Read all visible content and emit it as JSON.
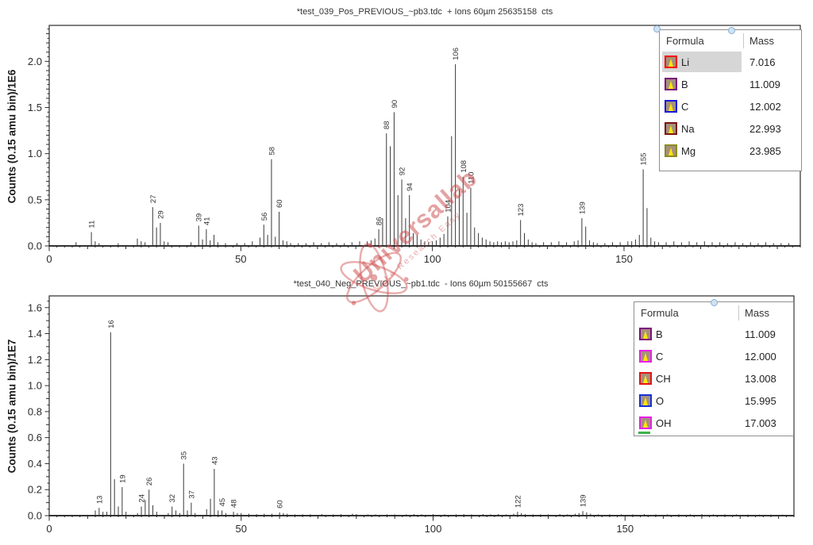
{
  "watermark": {
    "brand": "Universallab",
    "tagline": "Make Research Easy",
    "color": "#ce4c4c"
  },
  "chart_data": [
    {
      "type": "bar",
      "title": "*test_039_Pos_PREVIOUS_~pb3.tdc  + Ions 60µm 25635158  cts",
      "ylabel": "Counts (0.15 amu bin)/1E6",
      "xlabel": "",
      "xlim": [
        0,
        196
      ],
      "ylim": [
        0,
        2.39
      ],
      "xticks": [
        0,
        50,
        100,
        150
      ],
      "yticks": [
        0.0,
        0.5,
        1.0,
        1.5,
        2.0
      ],
      "x_mid_step": 10,
      "x_minor_step": 2,
      "y_mid_step": 0.1,
      "y_minor_step": 0.05,
      "grid": false,
      "peaks": [
        [
          7,
          0.04
        ],
        [
          11,
          0.15,
          "11"
        ],
        [
          12,
          0.05
        ],
        [
          13,
          0.03
        ],
        [
          18,
          0.03
        ],
        [
          23,
          0.08
        ],
        [
          24,
          0.05
        ],
        [
          25,
          0.04
        ],
        [
          27,
          0.42,
          "27"
        ],
        [
          28,
          0.2
        ],
        [
          29,
          0.25,
          "29"
        ],
        [
          30,
          0.05
        ],
        [
          31,
          0.04
        ],
        [
          37,
          0.04
        ],
        [
          39,
          0.22,
          "39"
        ],
        [
          40,
          0.07
        ],
        [
          41,
          0.18,
          "41"
        ],
        [
          42,
          0.06
        ],
        [
          43,
          0.12
        ],
        [
          44,
          0.04
        ],
        [
          46,
          0.03
        ],
        [
          49,
          0.03
        ],
        [
          51,
          0.03
        ],
        [
          53,
          0.05
        ],
        [
          55,
          0.09
        ],
        [
          56,
          0.23,
          "56"
        ],
        [
          57,
          0.12
        ],
        [
          58,
          0.94,
          "58"
        ],
        [
          59,
          0.1
        ],
        [
          60,
          0.37,
          "60"
        ],
        [
          61,
          0.06
        ],
        [
          62,
          0.05
        ],
        [
          63,
          0.03
        ],
        [
          65,
          0.03
        ],
        [
          67,
          0.03
        ],
        [
          69,
          0.04
        ],
        [
          71,
          0.03
        ],
        [
          73,
          0.04
        ],
        [
          75,
          0.03
        ],
        [
          77,
          0.03
        ],
        [
          79,
          0.04
        ],
        [
          81,
          0.05
        ],
        [
          83,
          0.05
        ],
        [
          84,
          0.06
        ],
        [
          85,
          0.08
        ],
        [
          86,
          0.18,
          "86"
        ],
        [
          87,
          0.3
        ],
        [
          88,
          1.22,
          "88"
        ],
        [
          89,
          1.08
        ],
        [
          90,
          1.45,
          "90"
        ],
        [
          91,
          0.55
        ],
        [
          92,
          0.72,
          "92"
        ],
        [
          93,
          0.3
        ],
        [
          94,
          0.55,
          "94"
        ],
        [
          95,
          0.14
        ],
        [
          96,
          0.12
        ],
        [
          97,
          0.07
        ],
        [
          98,
          0.05
        ],
        [
          99,
          0.04
        ],
        [
          100,
          0.05
        ],
        [
          101,
          0.06
        ],
        [
          102,
          0.09
        ],
        [
          103,
          0.13
        ],
        [
          104,
          0.32,
          "104"
        ],
        [
          105,
          1.19
        ],
        [
          106,
          1.97,
          "106"
        ],
        [
          107,
          0.62
        ],
        [
          108,
          0.75,
          "108"
        ],
        [
          109,
          0.36
        ],
        [
          110,
          0.63,
          "110"
        ],
        [
          111,
          0.2
        ],
        [
          112,
          0.14
        ],
        [
          113,
          0.09
        ],
        [
          114,
          0.07
        ],
        [
          115,
          0.05
        ],
        [
          116,
          0.04
        ],
        [
          117,
          0.05
        ],
        [
          118,
          0.04
        ],
        [
          119,
          0.05
        ],
        [
          120,
          0.04
        ],
        [
          121,
          0.05
        ],
        [
          122,
          0.06
        ],
        [
          123,
          0.28,
          "123"
        ],
        [
          124,
          0.14
        ],
        [
          125,
          0.07
        ],
        [
          126,
          0.04
        ],
        [
          127,
          0.03
        ],
        [
          129,
          0.04
        ],
        [
          131,
          0.04
        ],
        [
          133,
          0.05
        ],
        [
          135,
          0.04
        ],
        [
          137,
          0.05
        ],
        [
          138,
          0.06
        ],
        [
          139,
          0.3,
          "139"
        ],
        [
          140,
          0.21
        ],
        [
          141,
          0.06
        ],
        [
          142,
          0.04
        ],
        [
          143,
          0.03
        ],
        [
          145,
          0.03
        ],
        [
          147,
          0.04
        ],
        [
          149,
          0.04
        ],
        [
          151,
          0.05
        ],
        [
          152,
          0.05
        ],
        [
          153,
          0.07
        ],
        [
          154,
          0.12
        ],
        [
          155,
          0.83,
          "155"
        ],
        [
          156,
          0.41
        ],
        [
          157,
          0.09
        ],
        [
          158,
          0.05
        ],
        [
          159,
          0.04
        ],
        [
          161,
          0.04
        ],
        [
          163,
          0.05
        ],
        [
          165,
          0.04
        ],
        [
          167,
          0.05
        ],
        [
          169,
          0.04
        ],
        [
          171,
          0.05
        ],
        [
          173,
          0.04
        ],
        [
          175,
          0.04
        ],
        [
          177,
          0.03
        ],
        [
          179,
          0.04
        ],
        [
          181,
          0.03
        ],
        [
          183,
          0.04
        ],
        [
          185,
          0.03
        ],
        [
          187,
          0.04
        ],
        [
          189,
          0.03
        ],
        [
          191,
          0.03
        ],
        [
          193,
          0.03
        ]
      ],
      "legend": {
        "headers": [
          "Formula",
          "Mass"
        ],
        "rows": [
          {
            "formula": "Li",
            "mass": "7.016",
            "color": "#ff0000",
            "selected": true
          },
          {
            "formula": "B",
            "mass": "11.009",
            "color": "#7b0f7b",
            "selected": false
          },
          {
            "formula": "C",
            "mass": "12.002",
            "color": "#1616dd",
            "selected": false
          },
          {
            "formula": "Na",
            "mass": "22.993",
            "color": "#7a1212",
            "selected": false
          },
          {
            "formula": "Mg",
            "mass": "23.985",
            "color": "#8b8b1f",
            "selected": false
          }
        ]
      }
    },
    {
      "type": "bar",
      "title": "*test_040_Neg_PREVIOUS_~pb1.tdc  - Ions 60µm 50155667  cts",
      "ylabel": "Counts (0.15 amu bin)/1E7",
      "xlabel": "",
      "xlim": [
        0,
        194
      ],
      "ylim": [
        0,
        1.69
      ],
      "xticks": [
        0,
        50,
        100,
        150
      ],
      "yticks": [
        0.0,
        0.2,
        0.4,
        0.6,
        0.8,
        1.0,
        1.2,
        1.4,
        1.6
      ],
      "x_mid_step": 10,
      "x_minor_step": 2,
      "y_mid_step": 0.1,
      "y_minor_step": 0.05,
      "grid": false,
      "peaks": [
        [
          12,
          0.04
        ],
        [
          13,
          0.06,
          "13"
        ],
        [
          14,
          0.03
        ],
        [
          15,
          0.03
        ],
        [
          16,
          1.41,
          "16"
        ],
        [
          17,
          0.28
        ],
        [
          18,
          0.07
        ],
        [
          19,
          0.22,
          "19"
        ],
        [
          20,
          0.03
        ],
        [
          23,
          0.02
        ],
        [
          24,
          0.07,
          "24"
        ],
        [
          25,
          0.12
        ],
        [
          26,
          0.2,
          "26"
        ],
        [
          27,
          0.08
        ],
        [
          28,
          0.03
        ],
        [
          31,
          0.02
        ],
        [
          32,
          0.07,
          "32"
        ],
        [
          33,
          0.04
        ],
        [
          34,
          0.02
        ],
        [
          35,
          0.4,
          "35"
        ],
        [
          36,
          0.04
        ],
        [
          37,
          0.1,
          "37"
        ],
        [
          38,
          0.02
        ],
        [
          41,
          0.05
        ],
        [
          42,
          0.13
        ],
        [
          43,
          0.36,
          "43"
        ],
        [
          44,
          0.04
        ],
        [
          45,
          0.04,
          "45"
        ],
        [
          46,
          0.02
        ],
        [
          48,
          0.03,
          "48"
        ],
        [
          49,
          0.02
        ],
        [
          50,
          0.02
        ],
        [
          52,
          0.015
        ],
        [
          54,
          0.012
        ],
        [
          56,
          0.015
        ],
        [
          58,
          0.015
        ],
        [
          60,
          0.025,
          "60"
        ],
        [
          61,
          0.02
        ],
        [
          62,
          0.015
        ],
        [
          64,
          0.01
        ],
        [
          66,
          0.01
        ],
        [
          68,
          0.01
        ],
        [
          71,
          0.012
        ],
        [
          74,
          0.01
        ],
        [
          76,
          0.012
        ],
        [
          79,
          0.015
        ],
        [
          80,
          0.012
        ],
        [
          83,
          0.01
        ],
        [
          85,
          0.01
        ],
        [
          88,
          0.01
        ],
        [
          90,
          0.01
        ],
        [
          93,
          0.01
        ],
        [
          95,
          0.012
        ],
        [
          97,
          0.01
        ],
        [
          100,
          0.012
        ],
        [
          103,
          0.01
        ],
        [
          106,
          0.01
        ],
        [
          108,
          0.012
        ],
        [
          110,
          0.01
        ],
        [
          113,
          0.012
        ],
        [
          115,
          0.01
        ],
        [
          117,
          0.012
        ],
        [
          119,
          0.01
        ],
        [
          121,
          0.015
        ],
        [
          122,
          0.03,
          "122"
        ],
        [
          123,
          0.02
        ],
        [
          124,
          0.012
        ],
        [
          126,
          0.01
        ],
        [
          128,
          0.01
        ],
        [
          130,
          0.01
        ],
        [
          133,
          0.012
        ],
        [
          135,
          0.01
        ],
        [
          137,
          0.015
        ],
        [
          138,
          0.02
        ],
        [
          139,
          0.035,
          "139"
        ],
        [
          140,
          0.025
        ],
        [
          141,
          0.015
        ],
        [
          143,
          0.01
        ],
        [
          146,
          0.01
        ],
        [
          149,
          0.01
        ],
        [
          152,
          0.01
        ],
        [
          155,
          0.012
        ],
        [
          158,
          0.01
        ],
        [
          161,
          0.01
        ],
        [
          164,
          0.01
        ],
        [
          167,
          0.01
        ],
        [
          170,
          0.012
        ],
        [
          173,
          0.01
        ],
        [
          176,
          0.01
        ],
        [
          179,
          0.01
        ],
        [
          182,
          0.008
        ],
        [
          185,
          0.008
        ],
        [
          188,
          0.008
        ],
        [
          191,
          0.008
        ]
      ],
      "legend": {
        "headers": [
          "Formula",
          "Mass"
        ],
        "partial_row_color": "#3cb44a",
        "rows": [
          {
            "formula": "B",
            "mass": "11.009",
            "color": "#7b0f7b",
            "selected": false
          },
          {
            "formula": "C",
            "mass": "12.000",
            "color": "#e81ee8",
            "selected": false
          },
          {
            "formula": "CH",
            "mass": "13.008",
            "color": "#e41414",
            "selected": false
          },
          {
            "formula": "O",
            "mass": "15.995",
            "color": "#1430d8",
            "selected": false
          },
          {
            "formula": "OH",
            "mass": "17.003",
            "color": "#e81ee8",
            "selected": false
          }
        ]
      }
    }
  ]
}
